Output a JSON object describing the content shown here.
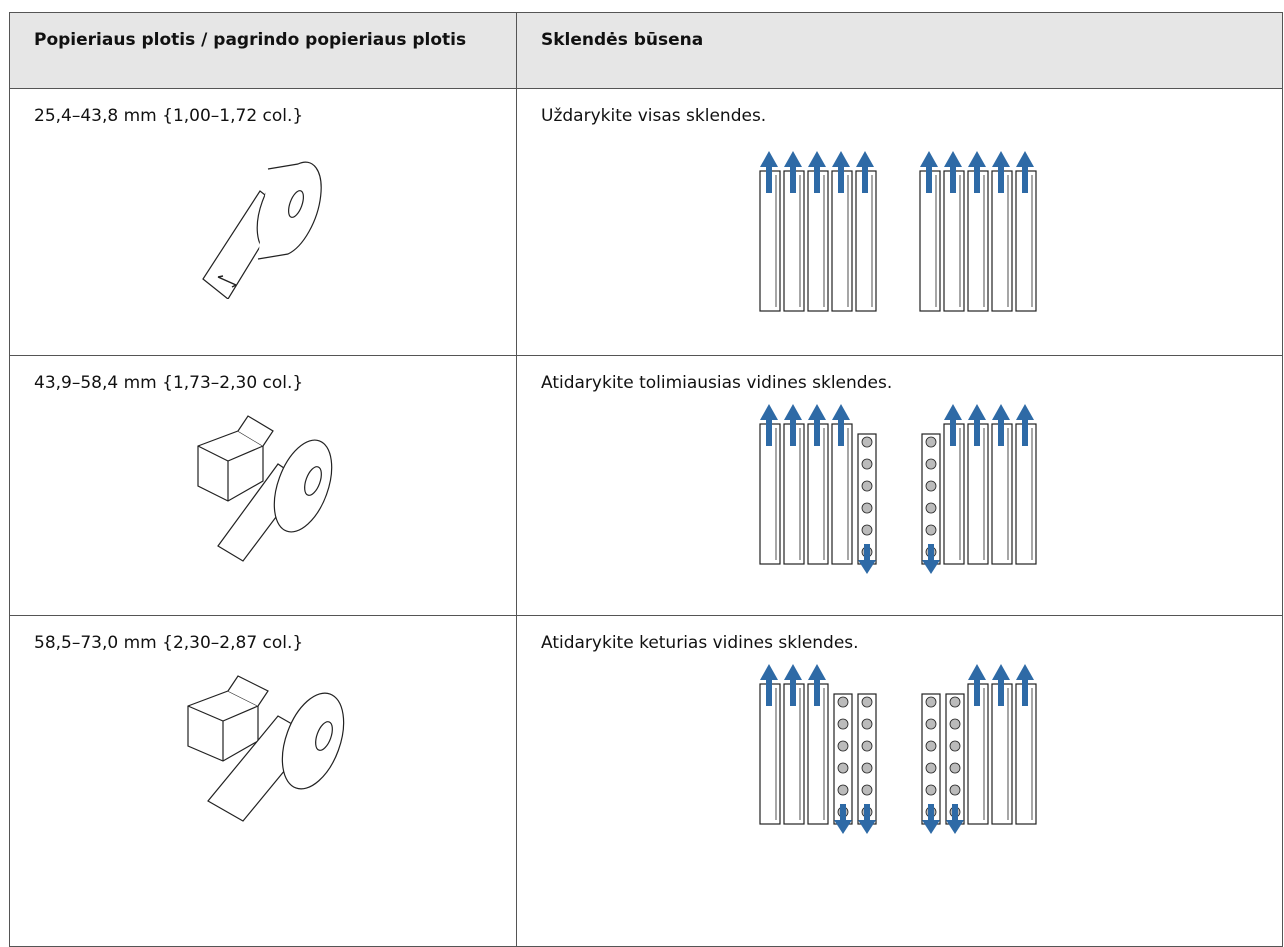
{
  "table": {
    "header": [
      "Popieriaus plotis / pagrindo popieriaus plotis",
      "Sklendės būsena"
    ],
    "rows": [
      [
        "25,4–43,8 mm {1,00–1,72 col.}",
        "Uždarykite visas sklendes."
      ],
      [
        "43,9–58,4 mm {1,73–2,30 col.}",
        "Atidarykite tolimiausias vidines sklendes."
      ],
      [
        "58,5–73,0 mm {2,30–2,87 col.}",
        "Atidarykite keturias vidines sklendes."
      ]
    ]
  }
}
